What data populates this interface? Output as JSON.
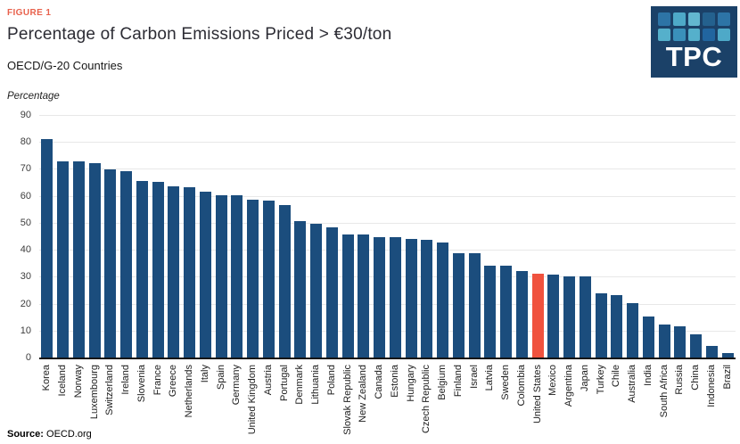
{
  "figure_label": "FIGURE 1",
  "title": "Percentage of Carbon Emissions Priced > €30/ton",
  "subtitle": "OECD/G-20 Countries",
  "unit_label": "Percentage",
  "source": {
    "prefix": "Source:",
    "text": "OECD.org"
  },
  "logo": {
    "text": "TPC",
    "background": "#1b4168",
    "square_colors": [
      "#2d74a6",
      "#4ea9c8",
      "#63b7d0",
      "#24618e",
      "#2d74a6",
      "#55b0cb",
      "#3a90ba",
      "#55b0cb",
      "#21659f",
      "#4ea9c8"
    ]
  },
  "colors": {
    "bar": "#1b4d7d",
    "highlight": "#f0523e",
    "figure_label": "#e8614c",
    "gridline": "#e8e8e8",
    "baseline": "#141414"
  },
  "chart_data": {
    "type": "bar",
    "title": "Percentage of Carbon Emissions Priced > €30/ton",
    "subtitle": "OECD/G-20 Countries",
    "ylabel": "Percentage",
    "xlabel": "",
    "ylim": [
      0,
      90
    ],
    "yticks": [
      0,
      10,
      20,
      30,
      40,
      50,
      60,
      70,
      80,
      90
    ],
    "grid": true,
    "legend": false,
    "highlight_category": "United States",
    "categories": [
      "Korea",
      "Iceland",
      "Norway",
      "Luxembourg",
      "Switzerland",
      "Ireland",
      "Slovenia",
      "France",
      "Greece",
      "Netherlands",
      "Italy",
      "Spain",
      "Germany",
      "United Kingdom",
      "Austria",
      "Portugal",
      "Denmark",
      "Lithuania",
      "Poland",
      "Slovak Republic",
      "New Zealand",
      "Canada",
      "Estonia",
      "Hungary",
      "Czech Republic",
      "Belgium",
      "Finland",
      "Israel",
      "Latvia",
      "Sweden",
      "Colombia",
      "United States",
      "Mexico",
      "Argentina",
      "Japan",
      "Turkey",
      "Chile",
      "Australia",
      "India",
      "South Africa",
      "Russia",
      "China",
      "Indonesia",
      "Brazil"
    ],
    "values": [
      81.5,
      73,
      73,
      72.5,
      70,
      69.5,
      66,
      65.5,
      64,
      63.5,
      62,
      60.5,
      60.5,
      59,
      58.5,
      57,
      51,
      50,
      48.5,
      46,
      46,
      45,
      45,
      44.5,
      44,
      43,
      39,
      39,
      34.5,
      34.5,
      32.5,
      31.5,
      31,
      30.5,
      30.5,
      24,
      23.5,
      20.5,
      15.5,
      12.5,
      12,
      9,
      4.5,
      2
    ]
  }
}
